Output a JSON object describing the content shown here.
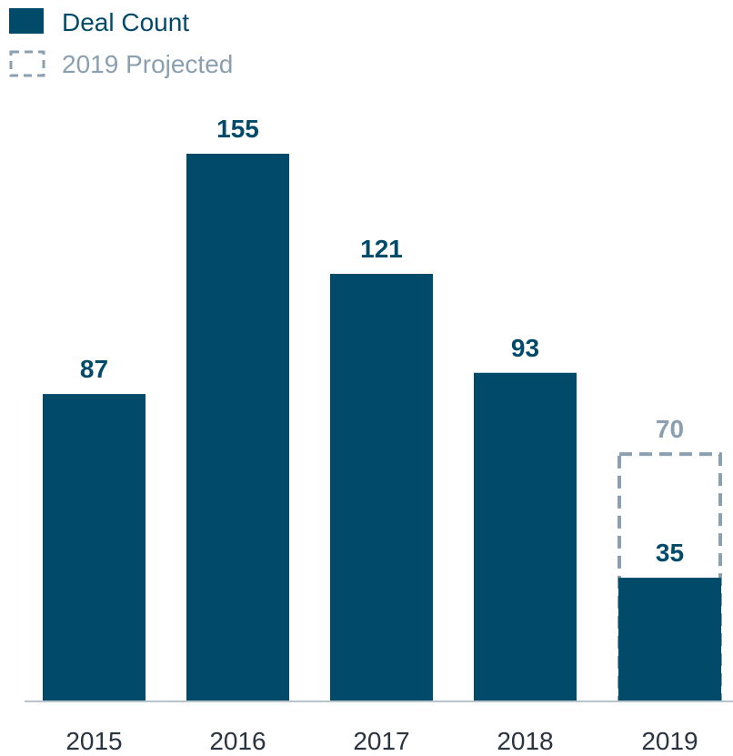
{
  "colors": {
    "primary": "#024a6a",
    "projected": "#8aa0b1",
    "axis": "#b9c3cb",
    "tick_text": "#2a3440"
  },
  "legend": {
    "deal_count": "Deal Count",
    "projected": "2019 Projected"
  },
  "chart_data": {
    "type": "bar",
    "categories": [
      "2015",
      "2016",
      "2017",
      "2018",
      "2019"
    ],
    "series": [
      {
        "name": "Deal Count",
        "values": [
          87,
          155,
          121,
          93,
          35
        ]
      },
      {
        "name": "2019 Projected",
        "values": [
          null,
          null,
          null,
          null,
          70
        ]
      }
    ],
    "data_labels": [
      "87",
      "155",
      "121",
      "93",
      "35"
    ],
    "projected_label": "70",
    "ylim": [
      0,
      155
    ],
    "grid": false,
    "legend_position": "top-left"
  }
}
